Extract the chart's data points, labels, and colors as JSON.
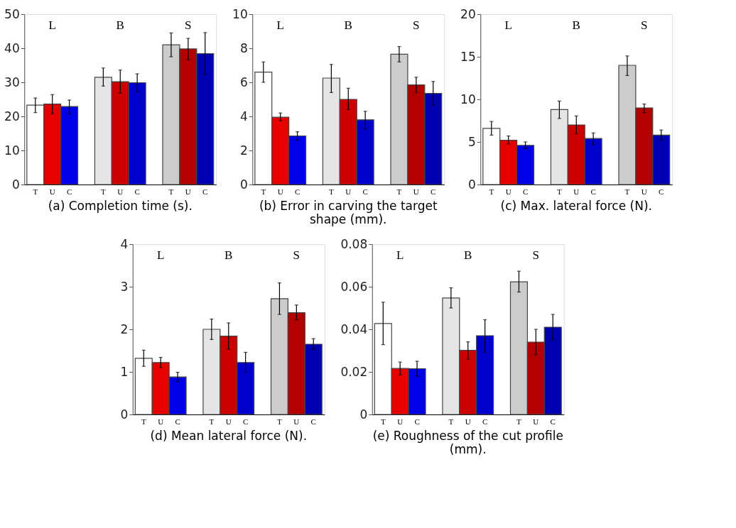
{
  "chart_data": [
    {
      "type": "bar",
      "title": "(a) Completion time (s).",
      "categories": [
        "T",
        "U",
        "C",
        null,
        "T",
        "U",
        "C",
        null,
        "T",
        "U",
        "C"
      ],
      "annotations": [
        "L",
        "B",
        "S"
      ],
      "values": [
        23.3,
        23.6,
        22.9,
        null,
        31.5,
        30.2,
        29.9,
        null,
        41.0,
        39.8,
        38.4
      ],
      "errors": [
        [
          21.1,
          25.4
        ],
        [
          20.8,
          26.4
        ],
        [
          20.8,
          24.8
        ],
        null,
        [
          28.9,
          34.2
        ],
        [
          26.8,
          33.6
        ],
        [
          27.2,
          32.5
        ],
        null,
        [
          37.5,
          44.5
        ],
        [
          36.6,
          42.9
        ],
        [
          32.3,
          44.6
        ]
      ],
      "colors": [
        "#ffffff",
        "#e60000",
        "#0000e6",
        null,
        "#e5e5e5",
        "#cc0000",
        "#0000cc",
        null,
        "#cccccc",
        "#b30000",
        "#0000b3"
      ],
      "ylim": [
        0,
        50
      ],
      "yticks": [
        0,
        10,
        20,
        30,
        40,
        50
      ],
      "grid": false
    },
    {
      "type": "bar",
      "title": "(b) Error in carving the target shape (mm).",
      "categories": [
        "T",
        "U",
        "C",
        null,
        "T",
        "U",
        "C",
        null,
        "T",
        "U",
        "C"
      ],
      "annotations": [
        "L",
        "B",
        "S"
      ],
      "values": [
        6.6,
        3.95,
        2.85,
        null,
        6.25,
        5.0,
        3.8,
        null,
        7.65,
        5.85,
        5.35
      ],
      "errors": [
        [
          6.0,
          7.2
        ],
        [
          3.75,
          4.2
        ],
        [
          2.6,
          3.1
        ],
        null,
        [
          5.4,
          7.05
        ],
        [
          4.4,
          5.65
        ],
        [
          3.25,
          4.3
        ],
        null,
        [
          7.2,
          8.1
        ],
        [
          5.4,
          6.3
        ],
        [
          4.65,
          6.05
        ]
      ],
      "colors": [
        "#ffffff",
        "#e60000",
        "#0000e6",
        null,
        "#e5e5e5",
        "#cc0000",
        "#0000cc",
        null,
        "#cccccc",
        "#b30000",
        "#0000b3"
      ],
      "ylim": [
        0,
        10
      ],
      "yticks": [
        0,
        2,
        4,
        6,
        8,
        10
      ],
      "grid": false
    },
    {
      "type": "bar",
      "title": "(c) Max. lateral force (N).",
      "categories": [
        "T",
        "U",
        "C",
        null,
        "T",
        "U",
        "C",
        null,
        "T",
        "U",
        "C"
      ],
      "annotations": [
        "L",
        "B",
        "S"
      ],
      "values": [
        6.6,
        5.2,
        4.6,
        null,
        8.8,
        7.0,
        5.4,
        null,
        14.0,
        9.0,
        5.8
      ],
      "errors": [
        [
          5.8,
          7.4
        ],
        [
          4.75,
          5.7
        ],
        [
          4.2,
          5.0
        ],
        null,
        [
          7.75,
          9.8
        ],
        [
          5.95,
          8.05
        ],
        [
          4.7,
          6.05
        ],
        null,
        [
          12.8,
          15.1
        ],
        [
          8.45,
          9.45
        ],
        [
          5.2,
          6.4
        ]
      ],
      "colors": [
        "#ffffff",
        "#e60000",
        "#0000e6",
        null,
        "#e5e5e5",
        "#cc0000",
        "#0000cc",
        null,
        "#cccccc",
        "#b30000",
        "#0000b3"
      ],
      "ylim": [
        0,
        20
      ],
      "yticks": [
        0,
        5,
        10,
        15,
        20
      ],
      "grid": false
    },
    {
      "type": "bar",
      "title": "(d) Mean lateral force (N).",
      "categories": [
        "T",
        "U",
        "C",
        null,
        "T",
        "U",
        "C",
        null,
        "T",
        "U",
        "C"
      ],
      "annotations": [
        "L",
        "B",
        "S"
      ],
      "values": [
        1.32,
        1.22,
        0.88,
        null,
        2.0,
        1.84,
        1.22,
        null,
        2.72,
        2.39,
        1.65
      ],
      "errors": [
        [
          1.13,
          1.51
        ],
        [
          1.1,
          1.34
        ],
        [
          0.77,
          0.99
        ],
        null,
        [
          1.76,
          2.24
        ],
        [
          1.53,
          2.15
        ],
        [
          0.99,
          1.46
        ],
        null,
        [
          2.35,
          3.09
        ],
        [
          2.22,
          2.57
        ],
        [
          1.52,
          1.78
        ]
      ],
      "colors": [
        "#ffffff",
        "#e60000",
        "#0000e6",
        null,
        "#e5e5e5",
        "#cc0000",
        "#0000cc",
        null,
        "#cccccc",
        "#b30000",
        "#0000b3"
      ],
      "ylim": [
        0,
        4
      ],
      "yticks": [
        0,
        1,
        2,
        3,
        4
      ],
      "grid": false
    },
    {
      "type": "bar",
      "title": "(e) Roughness of the cut profile (mm).",
      "categories": [
        "T",
        "U",
        "C",
        null,
        "T",
        "U",
        "C",
        null,
        "T",
        "U",
        "C"
      ],
      "annotations": [
        "L",
        "B",
        "S"
      ],
      "values": [
        0.0427,
        0.0216,
        0.0215,
        null,
        0.0547,
        0.0301,
        0.037,
        null,
        0.0623,
        0.034,
        0.041
      ],
      "errors": [
        [
          0.0328,
          0.0527
        ],
        [
          0.0186,
          0.0246
        ],
        [
          0.018,
          0.025
        ],
        null,
        [
          0.05,
          0.0595
        ],
        [
          0.026,
          0.0341
        ],
        [
          0.0292,
          0.0445
        ],
        null,
        [
          0.0575,
          0.0673
        ],
        [
          0.028,
          0.04
        ],
        [
          0.035,
          0.047
        ]
      ],
      "colors": [
        "#ffffff",
        "#e60000",
        "#0000e6",
        null,
        "#e5e5e5",
        "#cc0000",
        "#0000cc",
        null,
        "#cccccc",
        "#b30000",
        "#0000b3"
      ],
      "ylim": [
        0,
        0.08
      ],
      "yticks": [
        0,
        0.02,
        0.04,
        0.06,
        0.08
      ],
      "grid": false
    }
  ]
}
